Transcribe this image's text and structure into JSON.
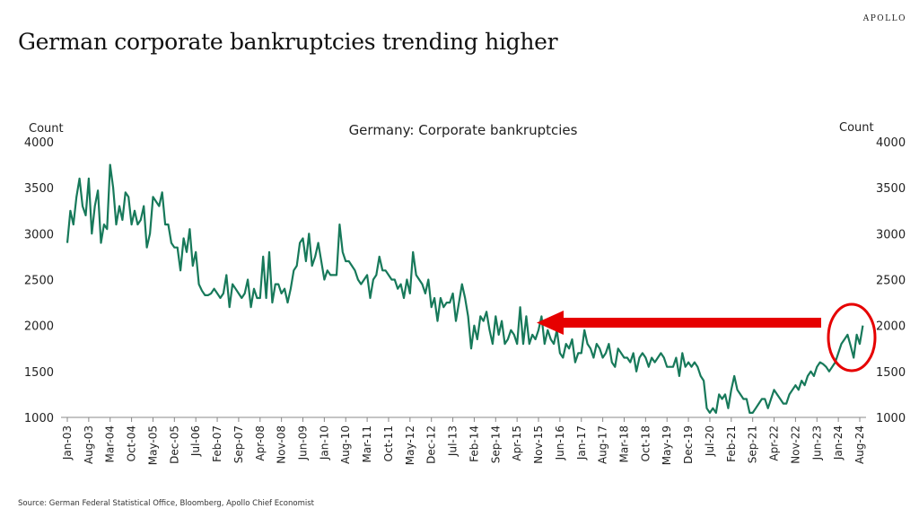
{
  "header": {
    "title": "German corporate bankruptcies trending higher",
    "brand": "APOLLO"
  },
  "footer": {
    "source": "Source: German Federal Statistical Office, Bloomberg, Apollo Chief Economist"
  },
  "chart_data": {
    "type": "line",
    "title": "Germany: Corporate bankruptcies",
    "ylabel_left": "Count",
    "ylabel_right": "Count",
    "ylim": [
      1000,
      4000
    ],
    "yticks": [
      1000,
      1500,
      2000,
      2500,
      3000,
      3500,
      4000
    ],
    "x_start": "Jan-03",
    "x_frequency": "monthly",
    "xtick_labels": [
      "Jan-03",
      "Aug-03",
      "Mar-04",
      "Oct-04",
      "May-05",
      "Dec-05",
      "Jul-06",
      "Feb-07",
      "Sep-07",
      "Apr-08",
      "Nov-08",
      "Jun-09",
      "Jan-10",
      "Aug-10",
      "Mar-11",
      "Oct-11",
      "May-12",
      "Dec-12",
      "Jul-13",
      "Feb-14",
      "Sep-14",
      "Apr-15",
      "Nov-15",
      "Jun-16",
      "Jan-17",
      "Aug-17",
      "Mar-18",
      "Oct-18",
      "May-19",
      "Dec-19",
      "Jul-20",
      "Feb-21",
      "Sep-21",
      "Apr-22",
      "Nov-22",
      "Jun-23",
      "Jan-24",
      "Aug-24"
    ],
    "line_color": "#17795a",
    "annotation_color": "#e60000",
    "values": [
      2900,
      3250,
      3100,
      3400,
      3600,
      3300,
      3200,
      3600,
      3000,
      3300,
      3470,
      2900,
      3100,
      3050,
      3750,
      3500,
      3100,
      3300,
      3150,
      3450,
      3400,
      3100,
      3250,
      3100,
      3150,
      3300,
      2850,
      3000,
      3400,
      3350,
      3300,
      3450,
      3100,
      3100,
      2900,
      2850,
      2850,
      2600,
      2950,
      2800,
      3050,
      2650,
      2800,
      2450,
      2380,
      2330,
      2330,
      2350,
      2400,
      2350,
      2300,
      2350,
      2550,
      2200,
      2450,
      2400,
      2350,
      2300,
      2350,
      2500,
      2200,
      2400,
      2300,
      2300,
      2750,
      2300,
      2800,
      2250,
      2450,
      2450,
      2350,
      2400,
      2250,
      2400,
      2600,
      2650,
      2900,
      2950,
      2700,
      3000,
      2650,
      2750,
      2900,
      2700,
      2500,
      2600,
      2550,
      2550,
      2550,
      3100,
      2800,
      2700,
      2700,
      2650,
      2600,
      2500,
      2450,
      2500,
      2550,
      2300,
      2500,
      2550,
      2750,
      2600,
      2600,
      2550,
      2500,
      2500,
      2400,
      2450,
      2300,
      2500,
      2350,
      2800,
      2550,
      2500,
      2450,
      2350,
      2500,
      2200,
      2300,
      2050,
      2300,
      2200,
      2250,
      2250,
      2350,
      2050,
      2250,
      2450,
      2300,
      2100,
      1750,
      2000,
      1850,
      2100,
      2050,
      2150,
      1950,
      1800,
      2100,
      1900,
      2050,
      1800,
      1850,
      1950,
      1900,
      1800,
      2200,
      1800,
      2100,
      1800,
      1900,
      1850,
      1950,
      2100,
      1800,
      1950,
      1850,
      1800,
      1950,
      1700,
      1650,
      1800,
      1750,
      1850,
      1600,
      1700,
      1700,
      1950,
      1800,
      1750,
      1650,
      1800,
      1750,
      1650,
      1700,
      1800,
      1600,
      1550,
      1750,
      1700,
      1650,
      1650,
      1600,
      1700,
      1500,
      1650,
      1700,
      1650,
      1550,
      1650,
      1600,
      1650,
      1700,
      1650,
      1550,
      1550,
      1550,
      1650,
      1450,
      1700,
      1550,
      1600,
      1550,
      1600,
      1550,
      1450,
      1400,
      1100,
      1050,
      1100,
      1050,
      1250,
      1200,
      1250,
      1100,
      1300,
      1450,
      1300,
      1250,
      1200,
      1200,
      1050,
      1050,
      1100,
      1150,
      1200,
      1200,
      1100,
      1200,
      1300,
      1250,
      1200,
      1150,
      1150,
      1250,
      1300,
      1350,
      1300,
      1400,
      1350,
      1450,
      1500,
      1450,
      1550,
      1600,
      1580,
      1550,
      1500,
      1550,
      1600,
      1700,
      1800,
      1850,
      1900,
      1780,
      1650,
      1900,
      1800,
      2000
    ]
  }
}
